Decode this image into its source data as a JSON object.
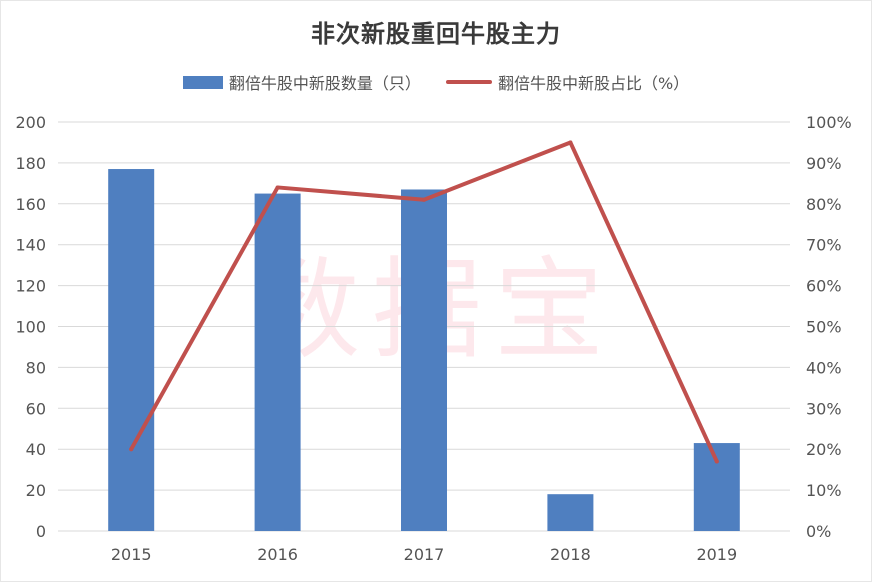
{
  "chart_data": {
    "type": "bar",
    "title": "非次新股重回牛股主力",
    "categories": [
      "2015",
      "2016",
      "2017",
      "2018",
      "2019"
    ],
    "series": [
      {
        "name": "翻倍牛股中新股数量（只）",
        "type": "bar",
        "axis": "left",
        "color": "#4f7fc0",
        "values": [
          177,
          165,
          167,
          18,
          43
        ]
      },
      {
        "name": "翻倍牛股中新股占比（%）",
        "type": "line",
        "axis": "right",
        "color": "#c0504d",
        "values": [
          20,
          84,
          81,
          95,
          17
        ]
      }
    ],
    "ylim": [
      0,
      200
    ],
    "y2lim": [
      0,
      100
    ],
    "yticks": [
      "0",
      "20",
      "40",
      "60",
      "80",
      "100",
      "120",
      "140",
      "160",
      "180",
      "200"
    ],
    "y2ticks": [
      "0%",
      "10%",
      "20%",
      "30%",
      "40%",
      "50%",
      "60%",
      "70%",
      "80%",
      "90%",
      "100%"
    ],
    "grid": true,
    "legend_position": "top"
  },
  "watermark": "数据宝"
}
